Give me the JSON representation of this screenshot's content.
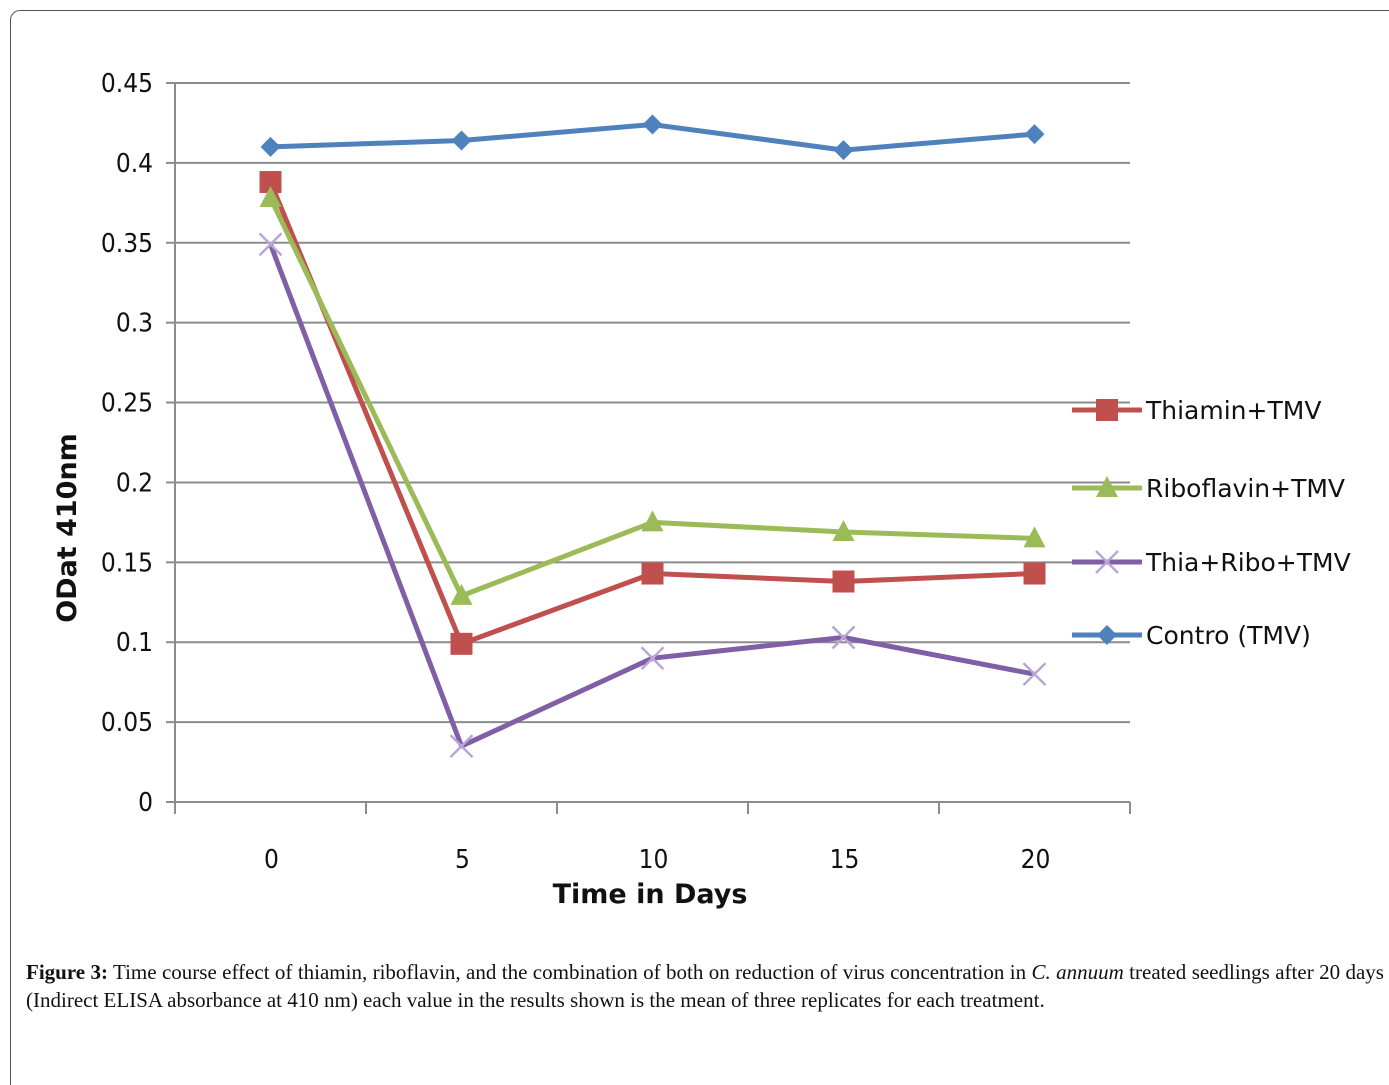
{
  "chart_data": {
    "type": "line",
    "title": "",
    "xlabel": "Time in Days",
    "ylabel": "ODat 410nm",
    "x": [
      0,
      5,
      10,
      15,
      20
    ],
    "ylim": [
      0,
      0.45
    ],
    "yticks": [
      "0",
      "0.05",
      "0.1",
      "0.15",
      "0.2",
      "0.25",
      "0.3",
      "0.35",
      "0.4",
      "0.45"
    ],
    "xticks": [
      "0",
      "5",
      "10",
      "15",
      "20"
    ],
    "grid": "horizontal",
    "legend_position": "right",
    "series": [
      {
        "name": "Thiamin+TMV",
        "values": [
          0.388,
          0.099,
          0.143,
          0.138,
          0.143
        ],
        "color": "#c0504d",
        "marker": "square"
      },
      {
        "name": "Riboflavin+TMV",
        "values": [
          0.378,
          0.129,
          0.175,
          0.169,
          0.165
        ],
        "color": "#9bbb59",
        "marker": "triangle"
      },
      {
        "name": "Thia+Ribo+TMV",
        "values": [
          0.349,
          0.035,
          0.09,
          0.103,
          0.08
        ],
        "color": "#7f5fa6",
        "marker": "cross"
      },
      {
        "name": "Contro (TMV)",
        "values": [
          0.41,
          0.414,
          0.424,
          0.408,
          0.418
        ],
        "color": "#4f81bd",
        "marker": "diamond"
      }
    ]
  },
  "caption": {
    "label": "Figure 3:",
    "text_before": " Time course effect of thiamin, riboflavin, and the combination of both on reduction of virus concentration in ",
    "species": "C. annuum",
    "text_after": " treated seedlings after 20 days (Indirect ELISA absorbance at 410 nm) each value in the results shown is the mean of three replicates for each treatment."
  }
}
